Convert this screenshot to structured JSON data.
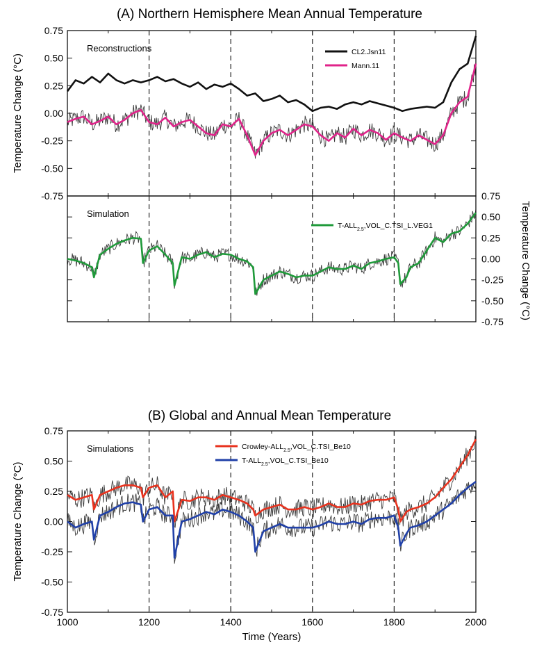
{
  "chart_data": [
    {
      "type": "line",
      "panel": "A-top",
      "title": "(A) Northern Hemisphere Mean Annual Temperature",
      "annotation": "Reconstructions",
      "ylabel": "Temperature Change (°C)",
      "y_axis_side": "left",
      "xlim": [
        1000,
        2000
      ],
      "ylim": [
        -0.75,
        0.75
      ],
      "yticks": [
        "0.75",
        "0.50",
        "0.25",
        "0.00",
        "-0.25",
        "-0.50",
        "-0.75"
      ],
      "vlines": [
        1200,
        1400,
        1600,
        1800
      ],
      "legend_position": "top-right",
      "series": [
        {
          "name": "CL2.Jsn11",
          "color": "#111111",
          "x": [
            1000,
            1020,
            1040,
            1060,
            1080,
            1100,
            1120,
            1140,
            1160,
            1180,
            1200,
            1220,
            1240,
            1260,
            1280,
            1300,
            1320,
            1340,
            1360,
            1380,
            1400,
            1420,
            1440,
            1460,
            1480,
            1500,
            1520,
            1540,
            1560,
            1580,
            1600,
            1620,
            1640,
            1660,
            1680,
            1700,
            1720,
            1740,
            1760,
            1780,
            1800,
            1820,
            1840,
            1860,
            1880,
            1900,
            1920,
            1940,
            1960,
            1980,
            2000
          ],
          "y": [
            0.2,
            0.3,
            0.27,
            0.33,
            0.28,
            0.36,
            0.3,
            0.27,
            0.3,
            0.28,
            0.3,
            0.33,
            0.29,
            0.31,
            0.27,
            0.24,
            0.28,
            0.22,
            0.26,
            0.24,
            0.27,
            0.22,
            0.16,
            0.18,
            0.11,
            0.13,
            0.16,
            0.1,
            0.12,
            0.08,
            0.02,
            0.05,
            0.06,
            0.04,
            0.08,
            0.1,
            0.08,
            0.11,
            0.09,
            0.07,
            0.05,
            0.02,
            0.04,
            0.05,
            0.06,
            0.05,
            0.1,
            0.28,
            0.4,
            0.45,
            0.7
          ]
        },
        {
          "name": "Mann.11",
          "color": "#e0238a",
          "x": [
            1000,
            1020,
            1040,
            1060,
            1080,
            1100,
            1120,
            1140,
            1160,
            1180,
            1200,
            1220,
            1240,
            1260,
            1280,
            1300,
            1320,
            1340,
            1360,
            1380,
            1400,
            1420,
            1440,
            1460,
            1480,
            1500,
            1520,
            1540,
            1560,
            1580,
            1600,
            1620,
            1640,
            1660,
            1680,
            1700,
            1720,
            1740,
            1760,
            1780,
            1800,
            1820,
            1840,
            1860,
            1880,
            1900,
            1920,
            1940,
            1960,
            1980,
            2000
          ],
          "y": [
            -0.08,
            -0.05,
            -0.03,
            -0.1,
            -0.07,
            -0.03,
            -0.1,
            -0.06,
            0.0,
            0.03,
            -0.08,
            -0.1,
            -0.04,
            -0.12,
            -0.08,
            -0.06,
            -0.12,
            -0.18,
            -0.2,
            -0.1,
            -0.12,
            -0.05,
            -0.2,
            -0.38,
            -0.25,
            -0.18,
            -0.15,
            -0.2,
            -0.15,
            -0.1,
            -0.12,
            -0.2,
            -0.25,
            -0.18,
            -0.22,
            -0.14,
            -0.2,
            -0.15,
            -0.18,
            -0.24,
            -0.18,
            -0.22,
            -0.25,
            -0.2,
            -0.24,
            -0.28,
            -0.2,
            0.0,
            0.1,
            0.15,
            0.45
          ]
        }
      ]
    },
    {
      "type": "line",
      "panel": "A-bottom",
      "annotation": "Simulation",
      "ylabel": "Temperature Change (°C)",
      "y_axis_side": "right",
      "xlim": [
        1000,
        2000
      ],
      "ylim": [
        -0.75,
        0.75
      ],
      "yticks": [
        "0.75",
        "0.50",
        "0.25",
        "0.00",
        "-0.25",
        "-0.50",
        "-0.75"
      ],
      "vlines": [
        1200,
        1400,
        1600,
        1800
      ],
      "legend_position": "top-right",
      "series": [
        {
          "name": "T-ALL",
          "name_sub": "2.5",
          "name_suffix": ",VOL_C.TSI_L.VEG1",
          "color": "#1f9a3a",
          "x": [
            1000,
            1020,
            1040,
            1060,
            1065,
            1080,
            1100,
            1120,
            1140,
            1160,
            1180,
            1185,
            1200,
            1220,
            1240,
            1258,
            1262,
            1280,
            1300,
            1320,
            1340,
            1360,
            1380,
            1400,
            1420,
            1440,
            1455,
            1460,
            1480,
            1500,
            1520,
            1540,
            1560,
            1580,
            1600,
            1620,
            1640,
            1660,
            1680,
            1700,
            1720,
            1740,
            1760,
            1780,
            1800,
            1810,
            1815,
            1830,
            1840,
            1860,
            1880,
            1900,
            1920,
            1940,
            1960,
            1980,
            2000
          ],
          "y": [
            0.0,
            -0.02,
            -0.05,
            -0.1,
            -0.22,
            0.05,
            0.12,
            0.18,
            0.22,
            0.25,
            0.24,
            -0.05,
            0.1,
            0.15,
            0.05,
            -0.05,
            -0.32,
            0.02,
            0.0,
            0.05,
            0.08,
            0.02,
            0.06,
            0.05,
            0.0,
            -0.03,
            -0.1,
            -0.42,
            -0.25,
            -0.2,
            -0.15,
            -0.18,
            -0.22,
            -0.2,
            -0.2,
            -0.15,
            -0.1,
            -0.12,
            -0.12,
            -0.08,
            -0.12,
            -0.05,
            -0.03,
            0.0,
            0.02,
            -0.05,
            -0.3,
            -0.22,
            -0.1,
            -0.05,
            0.1,
            0.25,
            0.2,
            0.3,
            0.33,
            0.42,
            0.55
          ]
        }
      ]
    },
    {
      "type": "line",
      "panel": "B",
      "title": "(B) Global and Annual Mean Temperature",
      "annotation": "Simulations",
      "ylabel": "Temperature Change (°C)",
      "xlabel": "Time (Years)",
      "y_axis_side": "left",
      "xlim": [
        1000,
        2000
      ],
      "ylim": [
        -0.75,
        0.75
      ],
      "xticks": [
        "1000",
        "1200",
        "1400",
        "1600",
        "1800",
        "2000"
      ],
      "yticks": [
        "0.75",
        "0.50",
        "0.25",
        "0.00",
        "-0.25",
        "-0.50",
        "-0.75"
      ],
      "vlines": [
        1200,
        1400,
        1600,
        1800
      ],
      "legend_position": "top-center",
      "series": [
        {
          "name": "Crowley-ALL",
          "name_sub": "2.5",
          "name_suffix": ",VOL_C.TSI_Be10",
          "color": "#e8321e",
          "x": [
            1000,
            1020,
            1040,
            1060,
            1065,
            1080,
            1100,
            1120,
            1140,
            1160,
            1180,
            1185,
            1200,
            1220,
            1240,
            1258,
            1262,
            1280,
            1300,
            1320,
            1340,
            1360,
            1380,
            1400,
            1420,
            1440,
            1455,
            1460,
            1480,
            1500,
            1520,
            1540,
            1560,
            1580,
            1600,
            1620,
            1640,
            1660,
            1680,
            1700,
            1720,
            1740,
            1760,
            1780,
            1800,
            1810,
            1815,
            1830,
            1840,
            1860,
            1880,
            1900,
            1920,
            1940,
            1960,
            1980,
            2000
          ],
          "y": [
            0.22,
            0.18,
            0.2,
            0.22,
            0.1,
            0.22,
            0.25,
            0.28,
            0.3,
            0.3,
            0.28,
            0.2,
            0.28,
            0.3,
            0.2,
            0.25,
            0.0,
            0.18,
            0.17,
            0.2,
            0.2,
            0.18,
            0.22,
            0.2,
            0.18,
            0.15,
            0.1,
            0.05,
            0.1,
            0.12,
            0.14,
            0.1,
            0.1,
            0.12,
            0.1,
            0.12,
            0.15,
            0.12,
            0.12,
            0.15,
            0.14,
            0.17,
            0.18,
            0.18,
            0.2,
            0.1,
            0.0,
            0.08,
            0.1,
            0.12,
            0.15,
            0.2,
            0.28,
            0.35,
            0.45,
            0.55,
            0.68
          ]
        },
        {
          "name": "T-ALL",
          "name_sub": "2.5",
          "name_suffix": ",VOL_C.TSI_Be10",
          "color": "#2040a8",
          "x": [
            1000,
            1020,
            1040,
            1060,
            1065,
            1080,
            1100,
            1120,
            1140,
            1160,
            1180,
            1185,
            1200,
            1220,
            1240,
            1258,
            1262,
            1280,
            1300,
            1320,
            1340,
            1360,
            1380,
            1400,
            1420,
            1440,
            1455,
            1460,
            1480,
            1500,
            1520,
            1540,
            1560,
            1580,
            1600,
            1620,
            1640,
            1660,
            1680,
            1700,
            1720,
            1740,
            1760,
            1780,
            1800,
            1810,
            1815,
            1830,
            1840,
            1860,
            1880,
            1900,
            1920,
            1940,
            1960,
            1980,
            2000
          ],
          "y": [
            0.0,
            -0.05,
            -0.02,
            0.0,
            -0.15,
            0.05,
            0.08,
            0.12,
            0.15,
            0.16,
            0.14,
            0.0,
            0.1,
            0.12,
            0.05,
            0.05,
            -0.3,
            0.0,
            0.02,
            0.05,
            0.08,
            0.06,
            0.1,
            0.08,
            0.05,
            0.0,
            -0.05,
            -0.25,
            -0.08,
            -0.05,
            -0.02,
            -0.05,
            -0.05,
            -0.05,
            -0.05,
            -0.03,
            0.0,
            -0.02,
            -0.02,
            0.0,
            -0.02,
            0.02,
            0.03,
            0.03,
            0.05,
            -0.05,
            -0.2,
            -0.1,
            -0.05,
            -0.03,
            0.0,
            0.05,
            0.1,
            0.15,
            0.22,
            0.28,
            0.33
          ]
        }
      ]
    }
  ]
}
